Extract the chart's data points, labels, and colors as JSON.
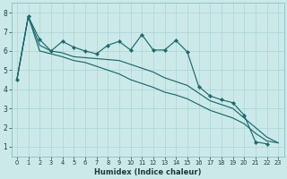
{
  "xlabel": "Humidex (Indice chaleur)",
  "xlim": [
    -0.5,
    23.5
  ],
  "ylim": [
    0.5,
    8.5
  ],
  "xticks": [
    0,
    1,
    2,
    3,
    4,
    5,
    6,
    7,
    8,
    9,
    10,
    11,
    12,
    13,
    14,
    15,
    16,
    17,
    18,
    19,
    20,
    21,
    22,
    23
  ],
  "yticks": [
    1,
    2,
    3,
    4,
    5,
    6,
    7,
    8
  ],
  "bg_color": "#cce9e9",
  "grid_color": "#aad4d4",
  "line_color": "#1a6b6b",
  "line1_x": [
    0,
    1,
    2,
    3,
    4,
    5,
    6,
    7,
    8,
    9,
    10,
    11,
    12,
    13,
    14,
    15,
    16,
    17,
    18,
    19,
    20,
    21,
    22
  ],
  "line1_y": [
    4.5,
    7.8,
    6.6,
    6.0,
    6.5,
    6.2,
    6.0,
    5.85,
    6.3,
    6.5,
    6.05,
    6.85,
    6.05,
    6.05,
    6.55,
    5.95,
    4.15,
    3.65,
    3.45,
    3.3,
    2.65,
    1.25,
    1.15
  ],
  "line2_x": [
    0,
    1,
    2,
    3,
    4,
    5,
    6,
    7,
    8,
    9,
    10,
    11,
    12,
    13,
    14,
    15,
    16,
    17,
    18,
    19,
    20,
    21,
    22,
    23
  ],
  "line2_y": [
    4.5,
    7.8,
    6.3,
    6.0,
    5.9,
    5.7,
    5.65,
    5.6,
    5.55,
    5.5,
    5.3,
    5.1,
    4.9,
    4.6,
    4.4,
    4.2,
    3.8,
    3.4,
    3.2,
    3.0,
    2.5,
    2.0,
    1.5,
    1.2
  ],
  "line3_x": [
    0,
    1,
    2,
    3,
    4,
    5,
    6,
    7,
    8,
    9,
    10,
    11,
    12,
    13,
    14,
    15,
    16,
    17,
    18,
    19,
    20,
    21,
    22,
    23
  ],
  "line3_y": [
    4.5,
    7.8,
    6.0,
    5.85,
    5.7,
    5.5,
    5.4,
    5.2,
    5.0,
    4.8,
    4.5,
    4.3,
    4.1,
    3.85,
    3.7,
    3.5,
    3.2,
    2.9,
    2.7,
    2.5,
    2.2,
    1.7,
    1.3,
    1.2
  ]
}
